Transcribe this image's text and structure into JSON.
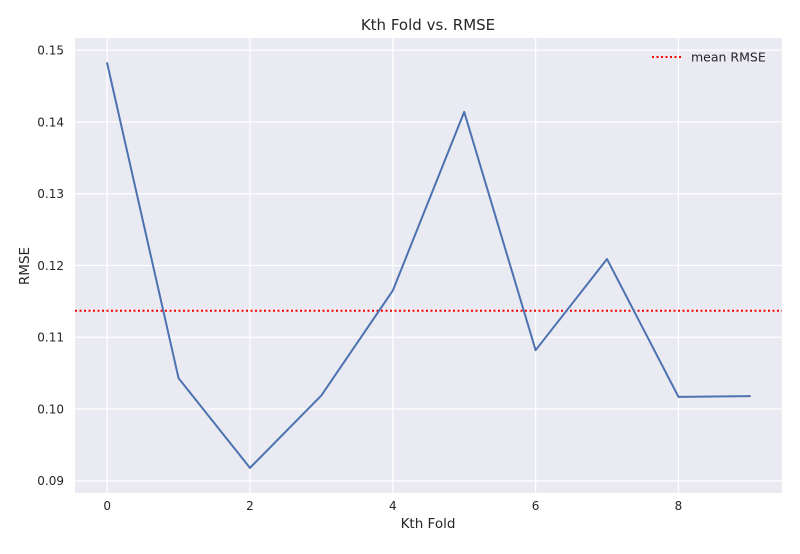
{
  "chart_data": {
    "type": "line",
    "title": "Kth Fold vs. RMSE",
    "xlabel": "Kth Fold",
    "ylabel": "RMSE",
    "x": [
      0,
      1,
      2,
      3,
      4,
      5,
      6,
      7,
      8,
      9
    ],
    "series": [
      {
        "values": [
          0.1482,
          0.1043,
          0.0918,
          0.1019,
          0.1165,
          0.1414,
          0.1082,
          0.1209,
          0.1017,
          0.1018
        ],
        "color": "#4c72b0",
        "style": "solid"
      }
    ],
    "reference_lines": [
      {
        "name": "mean RMSE",
        "y": 0.1137,
        "color": "#ff0000",
        "style": "dotted"
      }
    ],
    "xlim": [
      -0.45,
      9.45
    ],
    "ylim": [
      0.0883,
      0.1517
    ],
    "x_ticks": [
      0,
      2,
      4,
      6,
      8
    ],
    "x_tick_labels": [
      "0",
      "2",
      "4",
      "6",
      "8"
    ],
    "y_ticks": [
      0.09,
      0.1,
      0.11,
      0.12,
      0.13,
      0.14,
      0.15
    ],
    "y_tick_labels": [
      "0.09",
      "0.10",
      "0.11",
      "0.12",
      "0.13",
      "0.14",
      "0.15"
    ],
    "grid": true,
    "legend": {
      "position": "top-right",
      "entries": [
        "mean RMSE"
      ]
    },
    "background_color": "#eaeaf2",
    "grid_color": "#ffffff"
  }
}
